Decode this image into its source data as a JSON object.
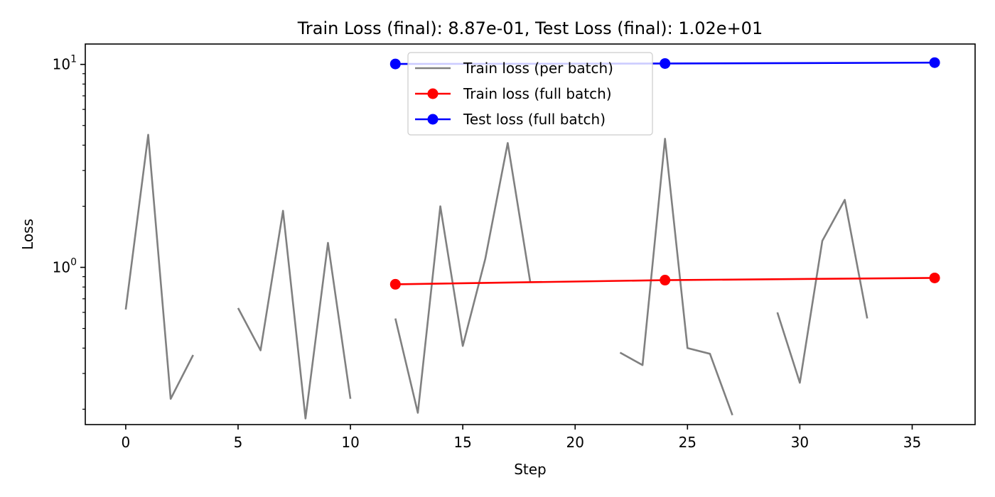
{
  "chart_data": {
    "type": "line",
    "title": "Train Loss (final): 8.87e-01, Test Loss (final): 1.02e+01",
    "xlabel": "Step",
    "ylabel": "Loss",
    "yscale": "log",
    "xlim": [
      -1.8,
      37.8
    ],
    "ylim": [
      0.168,
      12.6
    ],
    "x_ticks": [
      0,
      5,
      10,
      15,
      20,
      25,
      30,
      35
    ],
    "y_ticks": [
      {
        "value": 1,
        "base": "10",
        "exp": "0"
      },
      {
        "value": 10,
        "base": "10",
        "exp": "1"
      }
    ],
    "legend_position": "upper center",
    "grid": false,
    "series": [
      {
        "name": "Train loss (per batch)",
        "color": "#808080",
        "marker": "none",
        "segments": [
          {
            "x": [
              0,
              1,
              2,
              3
            ],
            "y": [
              0.62,
              4.5,
              0.225,
              0.37
            ]
          },
          {
            "x": [
              5,
              6,
              7,
              8,
              9,
              10
            ],
            "y": [
              0.63,
              0.39,
              1.9,
              0.18,
              1.32,
              0.225
            ]
          },
          {
            "x": [
              12,
              13,
              14,
              15,
              16,
              17,
              18
            ],
            "y": [
              0.56,
              0.192,
              2.0,
              0.41,
              1.1,
              4.1,
              0.85
            ]
          },
          {
            "x": [
              22,
              23,
              24,
              25,
              26,
              27
            ],
            "y": [
              0.38,
              0.33,
              4.3,
              0.4,
              0.375,
              0.187
            ]
          },
          {
            "x": [
              29,
              30,
              31,
              32,
              33
            ],
            "y": [
              0.6,
              0.27,
              1.35,
              2.15,
              0.56
            ]
          }
        ]
      },
      {
        "name": "Train loss (full batch)",
        "color": "#ff0000",
        "marker": "circle",
        "x": [
          12,
          24,
          36
        ],
        "y": [
          0.825,
          0.865,
          0.887
        ]
      },
      {
        "name": "Test loss (full batch)",
        "color": "#0000ff",
        "marker": "circle",
        "x": [
          12,
          24,
          36
        ],
        "y": [
          10.05,
          10.1,
          10.2
        ]
      }
    ]
  }
}
